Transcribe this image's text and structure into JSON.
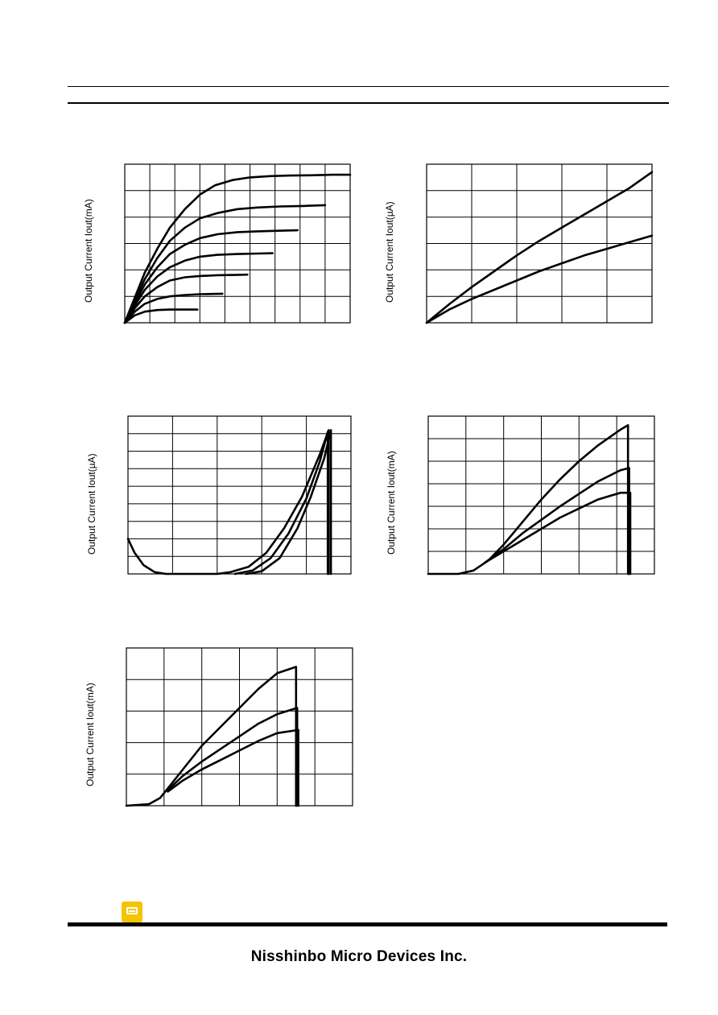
{
  "page": {
    "footer_brand": "Nisshinbo Micro Devices Inc.",
    "comment_icon": "comment-note-icon"
  },
  "chart_data": [
    {
      "id": "chart1",
      "type": "line",
      "ylabel": "Output Current Iout(mA)",
      "grid": true,
      "grid_divisions": [
        9,
        6
      ],
      "xlim": [
        0,
        9
      ],
      "ylim": [
        0,
        6
      ],
      "series": [
        {
          "x": [
            0,
            0.4,
            0.8,
            1.3,
            1.8,
            2.4,
            3,
            3.6,
            4.3,
            5,
            5.8,
            6.6,
            7.4,
            8.3,
            9
          ],
          "y": [
            0,
            0.95,
            1.9,
            2.8,
            3.6,
            4.3,
            4.85,
            5.2,
            5.4,
            5.5,
            5.55,
            5.57,
            5.58,
            5.6,
            5.6
          ]
        },
        {
          "x": [
            0,
            0.4,
            0.8,
            1.3,
            1.8,
            2.4,
            3,
            3.7,
            4.5,
            5.3,
            6.2,
            7.1,
            8
          ],
          "y": [
            0,
            0.85,
            1.65,
            2.45,
            3.1,
            3.6,
            3.95,
            4.15,
            4.3,
            4.36,
            4.4,
            4.42,
            4.45
          ]
        },
        {
          "x": [
            0,
            0.4,
            0.8,
            1.3,
            1.8,
            2.4,
            3,
            3.7,
            4.5,
            5.3,
            6.1,
            6.9
          ],
          "y": [
            0,
            0.75,
            1.45,
            2.1,
            2.6,
            2.95,
            3.2,
            3.35,
            3.43,
            3.46,
            3.48,
            3.5
          ]
        },
        {
          "x": [
            0,
            0.4,
            0.8,
            1.3,
            1.8,
            2.4,
            3,
            3.7,
            4.5,
            5.3,
            5.9
          ],
          "y": [
            0,
            0.65,
            1.25,
            1.75,
            2.1,
            2.35,
            2.5,
            2.57,
            2.6,
            2.62,
            2.63
          ]
        },
        {
          "x": [
            0,
            0.4,
            0.8,
            1.3,
            1.8,
            2.4,
            3,
            3.7,
            4.4,
            4.9
          ],
          "y": [
            0,
            0.55,
            1.0,
            1.35,
            1.6,
            1.72,
            1.77,
            1.8,
            1.81,
            1.82
          ]
        },
        {
          "x": [
            0,
            0.4,
            0.8,
            1.3,
            1.8,
            2.4,
            3,
            3.5,
            3.9
          ],
          "y": [
            0,
            0.42,
            0.72,
            0.9,
            1.0,
            1.05,
            1.08,
            1.09,
            1.1
          ]
        },
        {
          "x": [
            0,
            0.4,
            0.8,
            1.3,
            1.8,
            2.4,
            2.9
          ],
          "y": [
            0,
            0.28,
            0.42,
            0.48,
            0.5,
            0.5,
            0.5
          ]
        }
      ]
    },
    {
      "id": "chart2",
      "type": "line",
      "ylabel": "Output Current Iout(µA)",
      "grid": true,
      "grid_divisions": [
        5,
        6
      ],
      "xlim": [
        0,
        5
      ],
      "ylim": [
        0,
        6
      ],
      "series": [
        {
          "x": [
            0,
            0.5,
            1,
            1.5,
            2,
            2.5,
            3,
            3.5,
            4,
            4.5,
            5
          ],
          "y": [
            0,
            0.7,
            1.35,
            1.95,
            2.55,
            3.1,
            3.6,
            4.1,
            4.6,
            5.1,
            5.7
          ]
        },
        {
          "x": [
            0,
            0.5,
            1,
            1.5,
            2,
            2.5,
            3,
            3.5,
            4,
            4.5,
            5
          ],
          "y": [
            0,
            0.5,
            0.9,
            1.25,
            1.6,
            1.95,
            2.25,
            2.55,
            2.8,
            3.05,
            3.3
          ]
        }
      ]
    },
    {
      "id": "chart3",
      "type": "line",
      "ylabel": "Output Current Iout(µA)",
      "grid": true,
      "grid_divisions": [
        5,
        9
      ],
      "xlim": [
        0,
        5
      ],
      "ylim": [
        0,
        9
      ],
      "series": [
        {
          "x": [
            0,
            0.15,
            0.35,
            0.6,
            0.85,
            1.5,
            2,
            2.3,
            2.7,
            3.1,
            3.5,
            3.9,
            4.3,
            4.5,
            4.5
          ],
          "y": [
            2,
            1.2,
            0.5,
            0.1,
            0,
            0,
            0,
            0.1,
            0.4,
            1.2,
            2.6,
            4.4,
            6.8,
            8.2,
            0
          ]
        },
        {
          "x": [
            2.4,
            2.8,
            3.2,
            3.6,
            4,
            4.3,
            4.48,
            4.48
          ],
          "y": [
            0,
            0.2,
            0.9,
            2.3,
            4.3,
            6.4,
            8.1,
            0
          ]
        },
        {
          "x": [
            2.65,
            3,
            3.4,
            3.8,
            4.1,
            4.4,
            4.55,
            4.55
          ],
          "y": [
            0,
            0.15,
            0.9,
            2.6,
            4.4,
            6.6,
            8.2,
            0
          ]
        }
      ]
    },
    {
      "id": "chart4",
      "type": "line",
      "ylabel": "Output Current Iout(mA)",
      "grid": true,
      "grid_divisions": [
        6,
        7
      ],
      "xlim": [
        0,
        6
      ],
      "ylim": [
        0,
        7
      ],
      "series": [
        {
          "x": [
            0,
            0.8,
            1.2,
            1.6,
            2,
            2.5,
            3,
            3.5,
            4,
            4.5,
            5.1,
            5.3,
            5.3
          ],
          "y": [
            0,
            0,
            0.15,
            0.6,
            1.3,
            2.3,
            3.3,
            4.2,
            5,
            5.7,
            6.4,
            6.6,
            0
          ]
        },
        {
          "x": [
            1.5,
            2,
            2.5,
            3,
            3.5,
            4,
            4.5,
            5.1,
            5.33,
            5.33
          ],
          "y": [
            0.5,
            1.1,
            1.8,
            2.4,
            3,
            3.55,
            4.1,
            4.6,
            4.7,
            0
          ]
        },
        {
          "x": [
            1.5,
            2,
            2.5,
            3,
            3.5,
            4,
            4.5,
            5.1,
            5.36,
            5.36
          ],
          "y": [
            0.5,
            1.0,
            1.5,
            2.0,
            2.5,
            2.9,
            3.3,
            3.6,
            3.6,
            0
          ]
        }
      ]
    },
    {
      "id": "chart5",
      "type": "line",
      "ylabel": "Output Current Iout(mA)",
      "grid": true,
      "grid_divisions": [
        6,
        5
      ],
      "xlim": [
        0,
        6
      ],
      "ylim": [
        0,
        5
      ],
      "series": [
        {
          "x": [
            0,
            0.6,
            0.9,
            1.2,
            1.6,
            2,
            2.5,
            3,
            3.5,
            4,
            4.5,
            4.5
          ],
          "y": [
            0,
            0.05,
            0.25,
            0.7,
            1.3,
            1.9,
            2.5,
            3.1,
            3.7,
            4.2,
            4.4,
            0
          ]
        },
        {
          "x": [
            1.1,
            1.5,
            2,
            2.5,
            3,
            3.5,
            4,
            4.53,
            4.53
          ],
          "y": [
            0.5,
            0.95,
            1.4,
            1.8,
            2.2,
            2.6,
            2.9,
            3.1,
            0
          ]
        },
        {
          "x": [
            1.1,
            1.5,
            2,
            2.5,
            3,
            3.5,
            4,
            4.56,
            4.56
          ],
          "y": [
            0.45,
            0.8,
            1.15,
            1.45,
            1.75,
            2.05,
            2.3,
            2.4,
            0
          ]
        }
      ]
    }
  ]
}
